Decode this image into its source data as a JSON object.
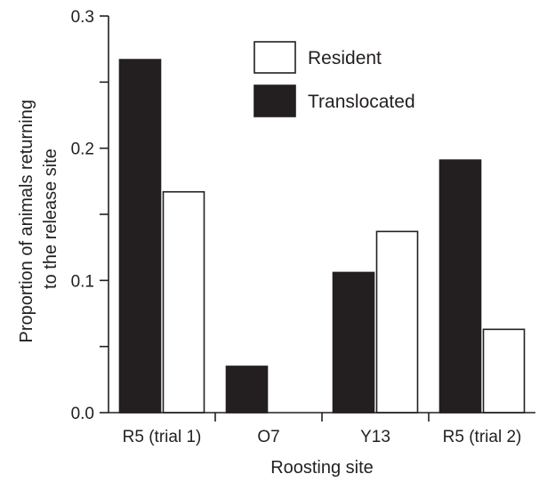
{
  "chart_data": {
    "type": "bar",
    "title": "",
    "xlabel": "Roosting site",
    "ylabel_lines": [
      "Proportion of animals returning",
      "to the release site"
    ],
    "categories": [
      "R5 (trial 1)",
      "O7",
      "Y13",
      "R5 (trial 2)"
    ],
    "series": [
      {
        "name": "Translocated",
        "color": "#231f20",
        "values": [
          0.267,
          0.035,
          0.106,
          0.191
        ]
      },
      {
        "name": "Resident",
        "color": "#ffffff",
        "values": [
          0.167,
          0,
          0.137,
          0.063
        ]
      }
    ],
    "ylim": [
      0,
      0.3
    ],
    "yticks": [
      0.0,
      0.1,
      0.2,
      0.3
    ],
    "ytick_labels": [
      "0.0",
      "0.1",
      "0.2",
      "0.3"
    ],
    "legend": {
      "placement": "top-center",
      "order": [
        "Resident",
        "Translocated"
      ]
    },
    "grid": false
  }
}
